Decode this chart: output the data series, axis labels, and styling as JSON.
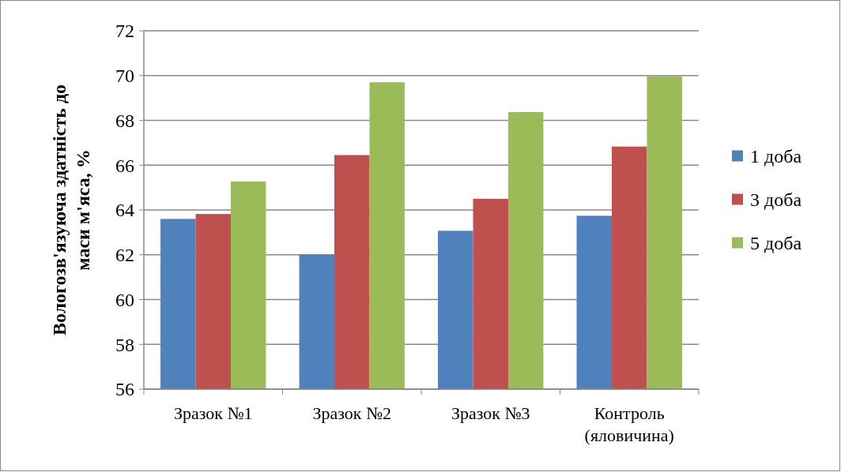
{
  "chart_data": {
    "type": "bar",
    "ylabel": "Вологозв'язуюча здатність до маси м'яса, %",
    "categories": [
      "Зразок №1",
      "Зразок №2",
      "Зразок №3",
      "Контроль (яловичина)"
    ],
    "series": [
      {
        "name": "1 доба",
        "color": "#4f81bd",
        "values": [
          63.6,
          62.0,
          63.07,
          63.74
        ]
      },
      {
        "name": "3 доба",
        "color": "#c0504d",
        "values": [
          63.82,
          66.45,
          64.5,
          66.83
        ]
      },
      {
        "name": "5 доба",
        "color": "#9bbb59",
        "values": [
          65.27,
          69.7,
          68.37,
          69.97
        ]
      }
    ],
    "ylim": [
      56,
      72
    ],
    "yticks": [
      56,
      58,
      60,
      62,
      64,
      66,
      68,
      70,
      72
    ],
    "grid": "y",
    "legend": "right"
  }
}
